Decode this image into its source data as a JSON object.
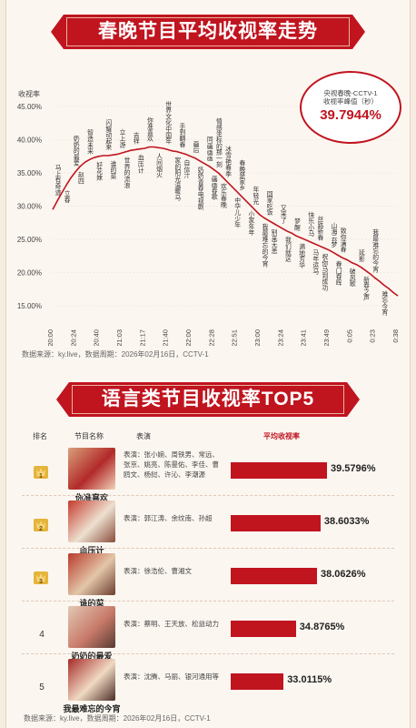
{
  "section1": {
    "title": "春晚节目平均收视率走势"
  },
  "section2": {
    "title": "语言类节目收视率TOP5"
  },
  "chart_data": {
    "type": "line",
    "ylabel": "收视率",
    "ylim": [
      15,
      45
    ],
    "yticks": [
      "45.00%",
      "40.00%",
      "35.00%",
      "30.00%",
      "25.00%",
      "20.00%",
      "15.00%"
    ],
    "xticks": [
      "20:00",
      "20:24",
      "20:40",
      "21:03",
      "21:17",
      "21:40",
      "22:00",
      "22:28",
      "22:51",
      "23:00",
      "23:24",
      "23:41",
      "23:49",
      "0:05",
      "0:23",
      "0:38"
    ],
    "x": [
      0,
      1,
      2,
      3,
      4,
      5,
      6,
      7,
      8,
      9,
      10,
      11,
      12,
      13,
      14,
      15,
      16,
      17,
      18,
      19,
      20,
      21,
      22,
      23,
      24,
      25,
      26,
      27,
      28,
      29,
      30,
      31,
      32,
      33,
      34,
      35,
      36,
      37,
      38,
      39,
      40,
      41,
      42,
      43,
      44,
      45,
      46,
      47,
      48,
      49,
      50,
      51,
      52,
      53,
      54,
      55,
      56,
      57,
      58,
      59,
      60,
      61,
      62,
      63,
      64,
      65,
      66,
      67,
      68,
      69,
      70,
      71,
      72,
      73,
      74,
      75
    ],
    "series": [
      {
        "values": [
          29.5,
          30.8,
          32.0,
          33.2,
          34.3,
          35.2,
          36.0,
          36.6,
          37.0,
          37.3,
          37.5,
          37.6,
          37.6,
          37.7,
          37.8,
          38.0,
          38.2,
          38.4,
          38.5,
          38.6,
          38.7,
          38.9,
          38.9,
          38.8,
          38.7,
          38.5,
          38.3,
          38.2,
          38.0,
          37.8,
          37.5,
          37.2,
          36.8,
          36.4,
          36.0,
          35.5,
          35.0,
          34.3,
          33.6,
          32.9,
          32.2,
          31.5,
          30.8,
          30.1,
          29.4,
          28.7,
          28.2,
          27.8,
          27.4,
          27.0,
          26.6,
          26.2,
          25.9,
          25.5,
          25.2,
          24.9,
          24.6,
          24.3,
          24.0,
          23.7,
          23.4,
          23.0,
          22.6,
          22.2,
          21.9,
          21.5,
          21.2,
          20.8,
          20.3,
          19.8,
          19.2,
          18.7,
          18.1,
          17.6,
          17.0,
          16.5
        ]
      }
    ],
    "annotations": [
      {
        "text": "马上有奇迹",
        "i": 1
      },
      {
        "text": "立春",
        "i": 3
      },
      {
        "text": "奶奶的最爱",
        "i": 5
      },
      {
        "text": "赵四",
        "i": 6
      },
      {
        "text": "智造未来",
        "i": 8
      },
      {
        "text": "好花妹",
        "i": 10
      },
      {
        "text": "闪耀动起来",
        "i": 12
      },
      {
        "text": "谁的菜",
        "i": 13
      },
      {
        "text": "立上游",
        "i": 15
      },
      {
        "text": "世界的流浪",
        "i": 16
      },
      {
        "text": "吉祥",
        "i": 18
      },
      {
        "text": "血压计",
        "i": 19
      },
      {
        "text": "你准喜欢",
        "i": 21
      },
      {
        "text": "人间烟火",
        "i": 23
      },
      {
        "text": "世界文化中国年",
        "i": 25
      },
      {
        "text": "家的阳光温暖马",
        "i": 27
      },
      {
        "text": "手到翻春",
        "i": 28
      },
      {
        "text": "自信汁",
        "i": 29
      },
      {
        "text": "画后",
        "i": 31
      },
      {
        "text": "奶奶青春电视剧",
        "i": 32
      },
      {
        "text": "同画画画",
        "i": 34
      },
      {
        "text": "画画春歌",
        "i": 35
      },
      {
        "text": "情感坐标的那一刻",
        "i": 36
      },
      {
        "text": "欢乐春晚",
        "i": 37
      },
      {
        "text": "冰雪艳春季",
        "i": 38
      },
      {
        "text": "中华儿少年",
        "i": 40
      },
      {
        "text": "春晚是家乡",
        "i": 41
      },
      {
        "text": "小家年年",
        "i": 43
      },
      {
        "text": "年轻光",
        "i": 44
      },
      {
        "text": "我最难忘的今宵",
        "i": 46
      },
      {
        "text": "回家吃饭",
        "i": 47
      },
      {
        "text": "别来无恙",
        "i": 48
      },
      {
        "text": "又来了",
        "i": 50
      },
      {
        "text": "我们就这",
        "i": 51
      },
      {
        "text": "梦醒",
        "i": 53
      },
      {
        "text": "满地芳华",
        "i": 54
      },
      {
        "text": "快乐小马",
        "i": 56
      },
      {
        "text": "马年运马",
        "i": 57
      },
      {
        "text": "丝路新春",
        "i": 58
      },
      {
        "text": "祝你马到成功",
        "i": 59
      },
      {
        "text": "山海云梦",
        "i": 61
      },
      {
        "text": "春门春晖",
        "i": 62
      },
      {
        "text": "致你满春",
        "i": 63
      },
      {
        "text": "破风歌",
        "i": 65
      },
      {
        "text": "延影",
        "i": 67
      },
      {
        "text": "新春之声",
        "i": 68
      },
      {
        "text": "我最难忘的今宵",
        "i": 70
      },
      {
        "text": "难忘今宵",
        "i": 72
      }
    ],
    "peak": {
      "label_line1": "央视春晚-CCTV-1",
      "label_line2": "收视率峰值（秒）",
      "value": "39.7944%"
    }
  },
  "source_text": "数据来源：ky.live，数据周期：2026年02月16日，CCTV-1",
  "top5": {
    "headers": {
      "rank": "排名",
      "name": "节目名称",
      "performers": "表演",
      "rating": "平均收视率"
    },
    "rows": [
      {
        "rank": "1",
        "name": "你准喜欢",
        "performers": "表演：张小婉、周铁男、常远、张京、姚亮、陈曼佑、李佳、曹鸥文、杨挝、许沁、李潮源",
        "rating": 39.5796,
        "rating_text": "39.5796%"
      },
      {
        "rank": "2",
        "name": "血压计",
        "performers": "表演：郭江涛、余纹南、孙超",
        "rating": 38.6033,
        "rating_text": "38.6033%"
      },
      {
        "rank": "3",
        "name": "谁的菜",
        "performers": "表演：徐浩伦、曹湘文",
        "rating": 38.0626,
        "rating_text": "38.0626%"
      },
      {
        "rank": "4",
        "name": "奶奶的最爱",
        "performers": "表演：蔡明、王天放、松益动力",
        "rating": 34.8765,
        "rating_text": "34.8765%"
      },
      {
        "rank": "5",
        "name": "我最难忘的今宵",
        "performers": "表演：沈腾、马丽、银河通用等",
        "rating": 33.0115,
        "rating_text": "33.0115%"
      }
    ]
  },
  "colors": {
    "accent": "#c0141f",
    "gold": "#e5b43a"
  }
}
